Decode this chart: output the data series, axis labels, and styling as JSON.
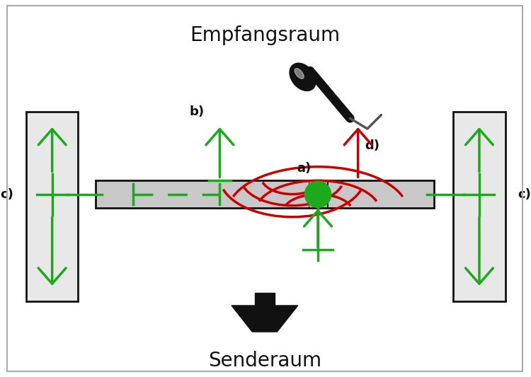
{
  "title_top": "Empfangsraum",
  "title_bottom": "Senderaum",
  "bg_color": "#ffffff",
  "wall_color": "#e8e8e8",
  "floor_color": "#c8c8c8",
  "green": "#1aaa1a",
  "red": "#cc0000",
  "black": "#111111",
  "label_a": "a)",
  "label_b": "b)",
  "label_c": "c)",
  "label_d": "d)",
  "fontsize_title": 20,
  "fontsize_label": 13
}
